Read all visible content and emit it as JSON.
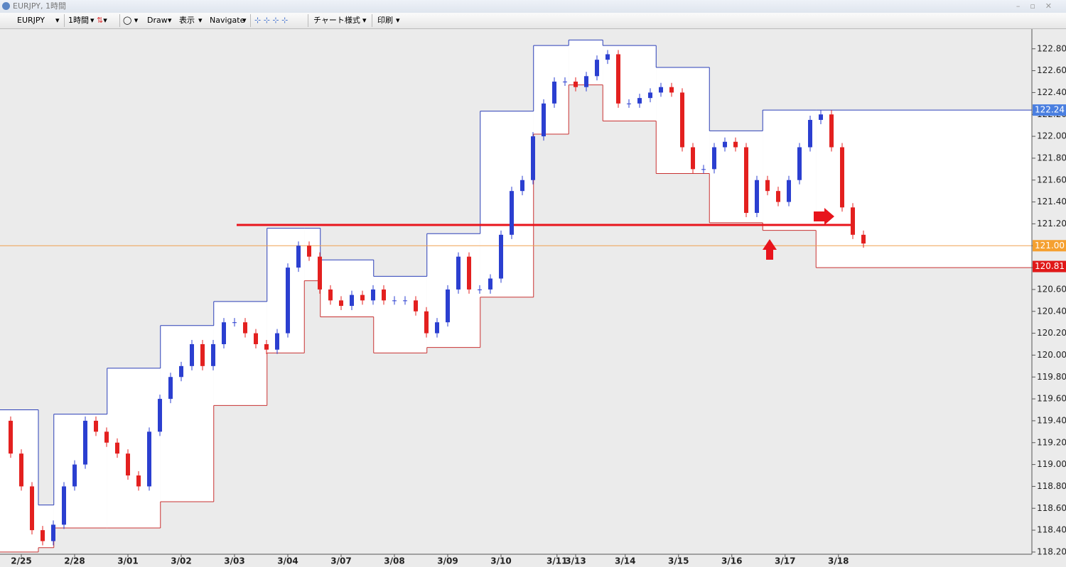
{
  "window": {
    "title": "EURJPY, 1時間"
  },
  "toolbar": {
    "items": [
      "EURJPY",
      "1時間",
      "Draw",
      "表示",
      "Navigate",
      "チャート様式",
      "印刷"
    ]
  },
  "chart_data": {
    "type": "candlestick",
    "xlim": [
      -0.4,
      18.96
    ],
    "ylim": [
      118.18,
      122.98
    ],
    "xticks": [
      {
        "value": 0,
        "label": "2/25"
      },
      {
        "value": 1,
        "label": "2/28"
      },
      {
        "value": 2,
        "label": "3/01"
      },
      {
        "value": 3,
        "label": "3/02"
      },
      {
        "value": 4,
        "label": "3/03"
      },
      {
        "value": 5,
        "label": "3/04"
      },
      {
        "value": 6,
        "label": "3/07"
      },
      {
        "value": 7,
        "label": "3/08"
      },
      {
        "value": 8,
        "label": "3/09"
      },
      {
        "value": 9,
        "label": "3/10"
      },
      {
        "value": 10.05,
        "label": "3/11"
      },
      {
        "value": 10.4,
        "label": "3/13"
      },
      {
        "value": 11.33,
        "label": "3/14"
      },
      {
        "value": 12.33,
        "label": "3/15"
      },
      {
        "value": 13.33,
        "label": "3/16"
      },
      {
        "value": 14.33,
        "label": "3/17"
      },
      {
        "value": 15.33,
        "label": "3/18"
      }
    ],
    "yticks": [
      {
        "value": 118.2,
        "label": "118.20"
      },
      {
        "value": 118.4,
        "label": "118.40"
      },
      {
        "value": 118.6,
        "label": "118.60"
      },
      {
        "value": 118.8,
        "label": "118.80"
      },
      {
        "value": 119.0,
        "label": "119.00"
      },
      {
        "value": 119.2,
        "label": "119.20"
      },
      {
        "value": 119.4,
        "label": "119.40"
      },
      {
        "value": 119.6,
        "label": "119.60"
      },
      {
        "value": 119.8,
        "label": "119.80"
      },
      {
        "value": 120.0,
        "label": "120.00"
      },
      {
        "value": 120.2,
        "label": "120.20"
      },
      {
        "value": 120.4,
        "label": "120.40"
      },
      {
        "value": 120.6,
        "label": "120.60"
      },
      {
        "value": 120.8,
        "label": "120.80"
      },
      {
        "value": 121.0,
        "label": "121.00"
      },
      {
        "value": 121.2,
        "label": "121.20"
      },
      {
        "value": 121.4,
        "label": "121.40"
      },
      {
        "value": 121.6,
        "label": "121.60"
      },
      {
        "value": 121.8,
        "label": "121.80"
      },
      {
        "value": 122.0,
        "label": "122.00"
      },
      {
        "value": 122.2,
        "label": "122.20"
      },
      {
        "value": 122.4,
        "label": "122.40"
      },
      {
        "value": 122.6,
        "label": "122.60"
      },
      {
        "value": 122.8,
        "label": "122.80"
      }
    ],
    "colors": {
      "up": "#2b3fd0",
      "down": "#e3201f"
    },
    "series": [
      {
        "name": "EURJPY",
        "x": [
          -0.4,
          -0.2,
          0,
          0.2,
          0.4,
          0.6,
          0.8,
          1,
          1.2,
          1.4,
          1.6,
          1.8,
          2,
          2.2,
          2.4,
          2.6,
          2.8,
          3,
          3.2,
          3.4,
          3.6,
          3.8,
          4,
          4.2,
          4.4,
          4.6,
          4.8,
          5,
          5.2,
          5.4,
          5.6,
          5.8,
          6,
          6.2,
          6.4,
          6.6,
          6.8,
          7,
          7.2,
          7.4,
          7.6,
          7.8,
          8,
          8.2,
          8.4,
          8.6,
          8.8,
          9,
          9.2,
          9.4,
          9.6,
          9.8,
          10,
          10.2,
          10.4,
          10.6,
          10.8,
          11,
          11.2,
          11.4,
          11.6,
          11.8,
          12,
          12.2,
          12.4,
          12.6,
          12.8,
          13,
          13.2,
          13.4,
          13.6,
          13.8,
          14,
          14.2,
          14.4,
          14.6,
          14.8,
          15,
          15.2,
          15.4,
          15.6,
          15.8
        ],
        "values": [
          119.4,
          119.1,
          118.8,
          118.4,
          118.3,
          118.45,
          118.8,
          119.0,
          119.4,
          119.3,
          119.2,
          119.1,
          118.9,
          118.8,
          119.3,
          119.6,
          119.8,
          119.9,
          120.1,
          119.9,
          120.1,
          120.3,
          120.3,
          120.2,
          120.1,
          120.05,
          120.2,
          120.8,
          121.0,
          120.9,
          120.6,
          120.5,
          120.45,
          120.55,
          120.5,
          120.6,
          120.5,
          120.5,
          120.5,
          120.4,
          120.2,
          120.3,
          120.6,
          120.9,
          120.6,
          120.6,
          120.7,
          121.1,
          121.5,
          121.6,
          122.0,
          122.3,
          122.5,
          122.5,
          122.45,
          122.55,
          122.7,
          122.75,
          122.3,
          122.3,
          122.35,
          122.4,
          122.45,
          122.4,
          121.9,
          121.7,
          121.7,
          121.9,
          121.95,
          121.9,
          121.3,
          121.6,
          121.5,
          121.4,
          121.6,
          121.9,
          122.15,
          122.2,
          121.9,
          121.35,
          121.1,
          121.02
        ]
      }
    ],
    "channel": {
      "x": [
        -0.4,
        0.32,
        0.61,
        1.61,
        2.61,
        3.61,
        4.61,
        5.31,
        5.61,
        6.61,
        7.61,
        8.61,
        9.61,
        10.27,
        10.91,
        11.91,
        12.91,
        13.91,
        14.91
      ],
      "upper": [
        119.5,
        118.63,
        119.46,
        119.88,
        120.27,
        120.49,
        121.16,
        121.16,
        120.87,
        120.72,
        121.11,
        122.23,
        122.83,
        122.88,
        122.83,
        122.63,
        122.05,
        122.24,
        122.24
      ],
      "lower": [
        118.2,
        118.24,
        118.42,
        118.42,
        118.66,
        119.54,
        120.02,
        120.68,
        120.35,
        120.02,
        120.07,
        120.53,
        122.02,
        122.47,
        122.14,
        121.66,
        121.21,
        121.14,
        120.8
      ],
      "upper_color": "#2b3fb8",
      "lower_color": "#c83030"
    },
    "lines": [
      {
        "value": 121.19,
        "color": "#e8141c",
        "x": [
          4.04,
          15.64
        ]
      },
      {
        "value": 121.0,
        "color": "#f0a050"
      }
    ],
    "price_tags": [
      {
        "value": 122.24,
        "color": "#4a7fe0"
      },
      {
        "value": 121.0,
        "label": "121.00",
        "color": "#f5a030"
      },
      {
        "value": 120.81,
        "label": "120.81",
        "color": "#e01818"
      }
    ]
  }
}
